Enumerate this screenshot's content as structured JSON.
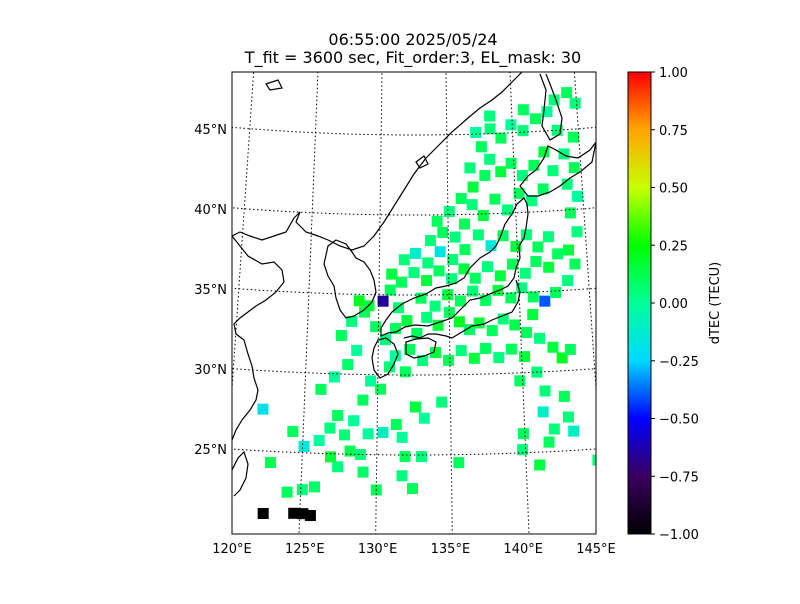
{
  "chart_data": {
    "type": "heatmap",
    "title": "06:55:00 2025/05/24",
    "subtitle": "T_fit = 3600 sec, Fit_order:3, EL_mask: 30",
    "lon_range": [
      120,
      145
    ],
    "lat_range": [
      20,
      49
    ],
    "lon_ticks": [
      120,
      125,
      130,
      135,
      140,
      145
    ],
    "lon_tick_labels": [
      "120°E",
      "125°E",
      "130°E",
      "135°E",
      "140°E",
      "145°E"
    ],
    "lat_ticks": [
      25,
      30,
      35,
      40,
      45
    ],
    "lat_tick_labels": [
      "25°N",
      "30°N",
      "35°N",
      "40°N",
      "45°N"
    ],
    "grid": true,
    "colorbar": {
      "label": "dTEC (TECU)",
      "range": [
        -1.0,
        1.0
      ],
      "ticks": [
        -1.0,
        -0.75,
        -0.5,
        -0.25,
        0.0,
        0.25,
        0.5,
        0.75,
        1.0
      ],
      "tick_labels": [
        "−1.00",
        "−0.75",
        "−0.50",
        "−0.25",
        "0.00",
        "0.25",
        "0.50",
        "0.75",
        "1.00"
      ],
      "colors": [
        "#000000",
        "#3a0060",
        "#0000ff",
        "#00d8ff",
        "#00ff9a",
        "#00ff00",
        "#c8ff00",
        "#ffa500",
        "#ff0000"
      ]
    },
    "points": [
      [
        122.6,
        21.1,
        -1.0
      ],
      [
        124.6,
        21.2,
        -1.0
      ],
      [
        125.2,
        21.2,
        -1.0
      ],
      [
        125.7,
        21.1,
        -1.0
      ],
      [
        122.2,
        27.6,
        -0.2
      ],
      [
        122.9,
        24.3,
        0.12
      ],
      [
        124.1,
        22.5,
        0.1
      ],
      [
        125.1,
        22.7,
        0.05
      ],
      [
        125.9,
        22.9,
        0.08
      ],
      [
        124.3,
        26.3,
        0.1
      ],
      [
        125.1,
        25.4,
        -0.15
      ],
      [
        126.1,
        25.8,
        0.0
      ],
      [
        126.8,
        26.6,
        0.05
      ],
      [
        127.3,
        27.4,
        0.1
      ],
      [
        127.8,
        26.2,
        0.05
      ],
      [
        128.4,
        27.1,
        0.0
      ],
      [
        129.0,
        28.4,
        0.1
      ],
      [
        129.5,
        29.6,
        0.0
      ],
      [
        130.2,
        29.1,
        0.1
      ],
      [
        130.8,
        30.5,
        0.05
      ],
      [
        131.2,
        31.2,
        0.0
      ],
      [
        131.9,
        30.2,
        0.1
      ],
      [
        132.6,
        28.0,
        0.15
      ],
      [
        133.2,
        27.3,
        0.0
      ],
      [
        134.4,
        28.3,
        0.05
      ],
      [
        131.3,
        26.9,
        0.1
      ],
      [
        130.4,
        26.4,
        -0.1
      ],
      [
        131.7,
        26.1,
        0.0
      ],
      [
        131.9,
        24.9,
        0.1
      ],
      [
        129.1,
        23.9,
        0.08
      ],
      [
        127.4,
        24.2,
        0.05
      ],
      [
        128.2,
        25.2,
        0.12
      ],
      [
        129.4,
        26.3,
        0.0
      ],
      [
        126.1,
        29.0,
        0.1
      ],
      [
        127.0,
        29.8,
        0.0
      ],
      [
        127.9,
        30.6,
        0.08
      ],
      [
        128.5,
        31.5,
        0.0
      ],
      [
        127.4,
        32.4,
        0.1
      ],
      [
        128.1,
        33.3,
        0.05
      ],
      [
        129.0,
        33.9,
        0.1
      ],
      [
        128.6,
        34.6,
        0.2
      ],
      [
        129.3,
        34.3,
        0.15
      ],
      [
        130.3,
        34.6,
        -0.65
      ],
      [
        129.8,
        33.0,
        0.1
      ],
      [
        130.5,
        32.2,
        0.05
      ],
      [
        131.2,
        32.9,
        0.1
      ],
      [
        132.0,
        33.4,
        0.15
      ],
      [
        132.7,
        32.6,
        0.1
      ],
      [
        133.4,
        33.6,
        0.05
      ],
      [
        134.2,
        33.1,
        0.15
      ],
      [
        135.0,
        33.9,
        0.1
      ],
      [
        135.7,
        33.3,
        0.2
      ],
      [
        136.4,
        32.8,
        0.1
      ],
      [
        137.1,
        33.2,
        0.15
      ],
      [
        138.0,
        32.7,
        0.1
      ],
      [
        138.8,
        33.4,
        0.05
      ],
      [
        139.6,
        33.0,
        0.12
      ],
      [
        140.4,
        32.5,
        0.1
      ],
      [
        141.3,
        32.1,
        0.05
      ],
      [
        142.2,
        31.5,
        0.15
      ],
      [
        142.8,
        30.8,
        0.2
      ],
      [
        143.4,
        31.3,
        0.1
      ],
      [
        140.9,
        33.6,
        0.15
      ],
      [
        141.8,
        34.4,
        -0.4
      ],
      [
        142.6,
        34.9,
        0.1
      ],
      [
        143.5,
        35.6,
        0.05
      ],
      [
        144.1,
        36.6,
        0.1
      ],
      [
        143.7,
        37.5,
        0.15
      ],
      [
        144.4,
        38.6,
        0.05
      ],
      [
        144.0,
        39.8,
        0.1
      ],
      [
        144.6,
        40.8,
        0.0
      ],
      [
        143.9,
        41.6,
        0.05
      ],
      [
        144.5,
        42.6,
        0.1
      ],
      [
        143.8,
        43.5,
        0.05
      ],
      [
        144.6,
        44.5,
        0.1
      ],
      [
        143.4,
        45.0,
        0.05
      ],
      [
        142.7,
        46.2,
        0.0
      ],
      [
        141.8,
        45.8,
        0.1
      ],
      [
        140.8,
        45.1,
        0.05
      ],
      [
        139.9,
        45.5,
        0.0
      ],
      [
        139.1,
        44.7,
        0.1
      ],
      [
        138.3,
        45.3,
        0.05
      ],
      [
        137.6,
        44.2,
        0.1
      ],
      [
        138.2,
        43.4,
        0.05
      ],
      [
        139.0,
        42.6,
        0.15
      ],
      [
        139.8,
        43.1,
        0.1
      ],
      [
        140.6,
        42.3,
        0.05
      ],
      [
        141.5,
        42.9,
        0.1
      ],
      [
        142.3,
        43.7,
        0.15
      ],
      [
        142.9,
        42.5,
        0.05
      ],
      [
        142.1,
        41.4,
        0.1
      ],
      [
        141.2,
        40.7,
        0.05
      ],
      [
        140.3,
        41.2,
        0.1
      ],
      [
        139.4,
        40.2,
        0.05
      ],
      [
        138.5,
        40.9,
        0.1
      ],
      [
        137.6,
        39.9,
        0.15
      ],
      [
        136.8,
        40.6,
        0.05
      ],
      [
        136.2,
        39.4,
        0.1
      ],
      [
        137.2,
        38.7,
        0.05
      ],
      [
        138.1,
        38.0,
        -0.15
      ],
      [
        139.0,
        38.6,
        0.1
      ],
      [
        139.9,
        37.9,
        0.15
      ],
      [
        140.7,
        38.6,
        0.05
      ],
      [
        141.5,
        37.8,
        0.1
      ],
      [
        142.3,
        38.4,
        0.05
      ],
      [
        142.9,
        37.3,
        0.1
      ],
      [
        142.2,
        36.5,
        0.15
      ],
      [
        141.3,
        36.9,
        0.1
      ],
      [
        140.5,
        36.2,
        0.05
      ],
      [
        139.6,
        36.8,
        0.1
      ],
      [
        138.7,
        36.1,
        0.15
      ],
      [
        137.8,
        36.7,
        0.05
      ],
      [
        136.9,
        36.0,
        0.1
      ],
      [
        136.1,
        36.6,
        0.15
      ],
      [
        135.2,
        36.0,
        0.05
      ],
      [
        134.3,
        36.5,
        0.1
      ],
      [
        133.4,
        35.9,
        0.15
      ],
      [
        132.5,
        36.4,
        0.05
      ],
      [
        131.6,
        35.8,
        0.1
      ],
      [
        130.9,
        36.3,
        0.15
      ],
      [
        131.8,
        37.2,
        0.05
      ],
      [
        132.6,
        37.6,
        -0.12
      ],
      [
        133.5,
        37.0,
        0.05
      ],
      [
        134.4,
        37.7,
        -0.18
      ],
      [
        135.3,
        37.2,
        0.05
      ],
      [
        136.2,
        37.8,
        0.1
      ],
      [
        135.5,
        38.6,
        0.05
      ],
      [
        134.6,
        38.9,
        0.1
      ],
      [
        133.7,
        38.4,
        0.05
      ],
      [
        134.2,
        39.6,
        0.1
      ],
      [
        135.1,
        40.2,
        0.05
      ],
      [
        136.0,
        41.0,
        0.1
      ],
      [
        136.9,
        41.7,
        0.15
      ],
      [
        137.8,
        42.4,
        0.1
      ],
      [
        136.7,
        42.9,
        0.05
      ],
      [
        137.2,
        45.1,
        0.0
      ],
      [
        138.3,
        46.1,
        0.05
      ],
      [
        140.9,
        46.4,
        0.1
      ],
      [
        143.3,
        46.9,
        0.05
      ],
      [
        144.3,
        47.3,
        0.1
      ],
      [
        144.9,
        46.6,
        0.05
      ],
      [
        133.0,
        34.8,
        0.1
      ],
      [
        134.0,
        34.3,
        0.05
      ],
      [
        134.9,
        35.0,
        0.15
      ],
      [
        135.8,
        34.6,
        0.1
      ],
      [
        136.7,
        35.2,
        0.05
      ],
      [
        137.6,
        34.6,
        0.1
      ],
      [
        138.5,
        35.2,
        0.15
      ],
      [
        139.4,
        34.7,
        0.1
      ],
      [
        140.2,
        35.3,
        0.05
      ],
      [
        141.0,
        34.7,
        0.1
      ],
      [
        131.4,
        34.2,
        0.05
      ],
      [
        130.8,
        35.3,
        0.1
      ],
      [
        132.2,
        31.6,
        0.1
      ],
      [
        133.1,
        30.9,
        0.05
      ],
      [
        134.0,
        31.4,
        0.15
      ],
      [
        134.9,
        30.9,
        0.1
      ],
      [
        135.8,
        31.5,
        0.05
      ],
      [
        136.7,
        31.0,
        0.15
      ],
      [
        137.5,
        31.6,
        0.1
      ],
      [
        138.4,
        31.0,
        0.05
      ],
      [
        139.3,
        31.5,
        0.1
      ],
      [
        140.2,
        31.0,
        0.15
      ],
      [
        139.8,
        29.5,
        0.1
      ],
      [
        141.0,
        30.0,
        0.05
      ],
      [
        142.8,
        28.4,
        0.1
      ],
      [
        141.5,
        28.8,
        0.05
      ],
      [
        141.3,
        27.5,
        -0.1
      ],
      [
        142.0,
        26.4,
        0.05
      ],
      [
        141.6,
        25.6,
        0.1
      ],
      [
        143.3,
        26.2,
        -0.1
      ],
      [
        143.0,
        27.1,
        0.05
      ],
      [
        144.8,
        24.3,
        0.05
      ],
      [
        139.9,
        26.2,
        0.1
      ],
      [
        139.8,
        25.2,
        0.05
      ],
      [
        140.9,
        24.2,
        0.15
      ],
      [
        135.5,
        24.5,
        0.1
      ],
      [
        133.0,
        24.9,
        0.05
      ],
      [
        130.0,
        22.8,
        0.1
      ],
      [
        131.7,
        23.7,
        0.05
      ],
      [
        132.4,
        22.9,
        0.1
      ],
      [
        126.9,
        24.8,
        0.15
      ],
      [
        128.9,
        25.0,
        0.05
      ]
    ]
  }
}
